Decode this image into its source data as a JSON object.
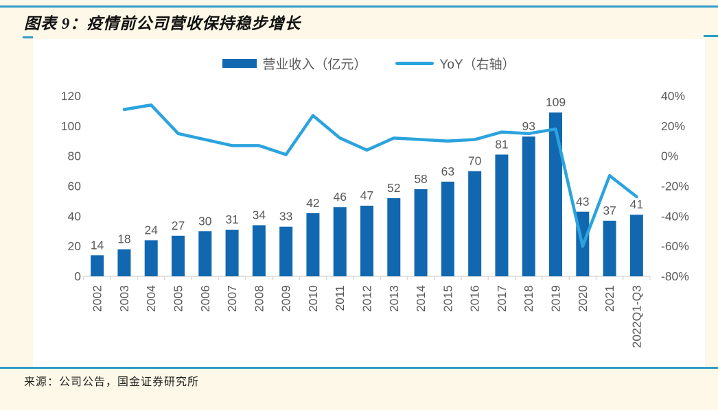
{
  "page": {
    "title": "图表 9：疫情前公司营收保持稳步增长",
    "source": "来源：公司公告，国金证券研究所"
  },
  "legend": {
    "bar_label": "营业收入（亿元）",
    "line_label": "YoY（右轴）"
  },
  "colors": {
    "background": "#FDF8E7",
    "panel": "#FFFFFF",
    "rule_blue": "#2E9BC9",
    "bar_blue": "#1168B0",
    "line_blue": "#2BA3DE",
    "label_gray": "#595959",
    "axis_gray": "#D9D9D9"
  },
  "chart_data": {
    "type": "bar",
    "subtype": "bar-line-combo",
    "title": "图表 9：疫情前公司营收保持稳步增长",
    "categories": [
      "2002",
      "2003",
      "2004",
      "2005",
      "2006",
      "2007",
      "2008",
      "2009",
      "2010",
      "2011",
      "2012",
      "2013",
      "2014",
      "2015",
      "2016",
      "2017",
      "2018",
      "2019",
      "2020",
      "2021",
      "2022Q1-Q3"
    ],
    "series": [
      {
        "name": "营业收入（亿元）",
        "type": "bar",
        "axis": "left",
        "values": [
          14,
          18,
          24,
          27,
          30,
          31,
          34,
          33,
          42,
          46,
          47,
          52,
          58,
          63,
          70,
          81,
          93,
          109,
          43,
          37,
          41
        ]
      },
      {
        "name": "YoY（右轴）",
        "type": "line",
        "axis": "right",
        "unit": "%",
        "values": [
          null,
          31,
          34,
          15,
          11,
          7,
          7,
          1,
          27,
          12,
          4,
          12,
          11,
          10,
          11,
          16,
          15,
          18,
          -60,
          -13,
          -27
        ]
      }
    ],
    "left_axis": {
      "range": [
        0,
        120
      ],
      "ticks": [
        0,
        20,
        40,
        60,
        80,
        100,
        120
      ],
      "tick_labels": [
        "0",
        "20",
        "40",
        "60",
        "80",
        "100",
        "120"
      ]
    },
    "right_axis": {
      "range": [
        -80,
        40
      ],
      "ticks": [
        -80,
        -60,
        -40,
        -20,
        0,
        20,
        40
      ],
      "tick_labels": [
        "-80%",
        "-60%",
        "-40%",
        "-20%",
        "0%",
        "20%",
        "40%"
      ]
    },
    "grid": false,
    "bar_value_labels": true,
    "legend_position": "top-center",
    "x_label_rotation": -90
  }
}
